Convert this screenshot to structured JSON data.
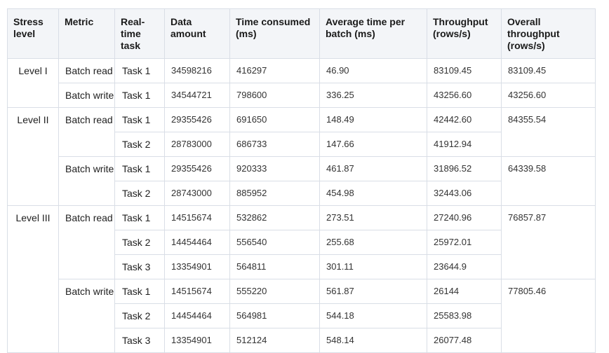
{
  "headers": [
    "Stress level",
    "Metric",
    "Real-time task",
    "Data amount",
    "Time consumed (ms)",
    "Average time per batch (ms)",
    "Throughput (rows/s)",
    "Overall throughput (rows/s)"
  ],
  "levels": [
    {
      "stress": "Level I",
      "metrics": [
        {
          "metric": "Batch read",
          "overall": "83109.45",
          "tasks": [
            {
              "task": "Task 1",
              "data": "34598216",
              "time": "416297",
              "avg": "46.90",
              "throughput": "83109.45"
            }
          ]
        },
        {
          "metric": "Batch write",
          "overall": "43256.60",
          "tasks": [
            {
              "task": "Task 1",
              "data": "34544721",
              "time": "798600",
              "avg": "336.25",
              "throughput": "43256.60"
            }
          ]
        }
      ]
    },
    {
      "stress": "Level II",
      "metrics": [
        {
          "metric": "Batch read",
          "overall": "84355.54",
          "tasks": [
            {
              "task": "Task 1",
              "data": "29355426",
              "time": "691650",
              "avg": "148.49",
              "throughput": "42442.60"
            },
            {
              "task": "Task 2",
              "data": "28783000",
              "time": "686733",
              "avg": "147.66",
              "throughput": "41912.94"
            }
          ]
        },
        {
          "metric": "Batch write",
          "overall": "64339.58",
          "tasks": [
            {
              "task": "Task 1",
              "data": "29355426",
              "time": "920333",
              "avg": "461.87",
              "throughput": "31896.52"
            },
            {
              "task": "Task 2",
              "data": "28743000",
              "time": "885952",
              "avg": "454.98",
              "throughput": "32443.06"
            }
          ]
        }
      ]
    },
    {
      "stress": "Level III",
      "metrics": [
        {
          "metric": "Batch read",
          "overall": "76857.87",
          "tasks": [
            {
              "task": "Task 1",
              "data": "14515674",
              "time": "532862",
              "avg": "273.51",
              "throughput": "27240.96"
            },
            {
              "task": "Task 2",
              "data": "14454464",
              "time": "556540",
              "avg": "255.68",
              "throughput": "25972.01"
            },
            {
              "task": "Task 3",
              "data": "13354901",
              "time": "564811",
              "avg": "301.11",
              "throughput": "23644.9"
            }
          ]
        },
        {
          "metric": "Batch write",
          "overall": "77805.46",
          "tasks": [
            {
              "task": "Task 1",
              "data": "14515674",
              "time": "555220",
              "avg": "561.87",
              "throughput": "26144"
            },
            {
              "task": "Task 2",
              "data": "14454464",
              "time": "564981",
              "avg": "544.18",
              "throughput": "25583.98"
            },
            {
              "task": "Task 3",
              "data": "13354901",
              "time": "512124",
              "avg": "548.14",
              "throughput": "26077.48"
            }
          ]
        }
      ]
    }
  ]
}
